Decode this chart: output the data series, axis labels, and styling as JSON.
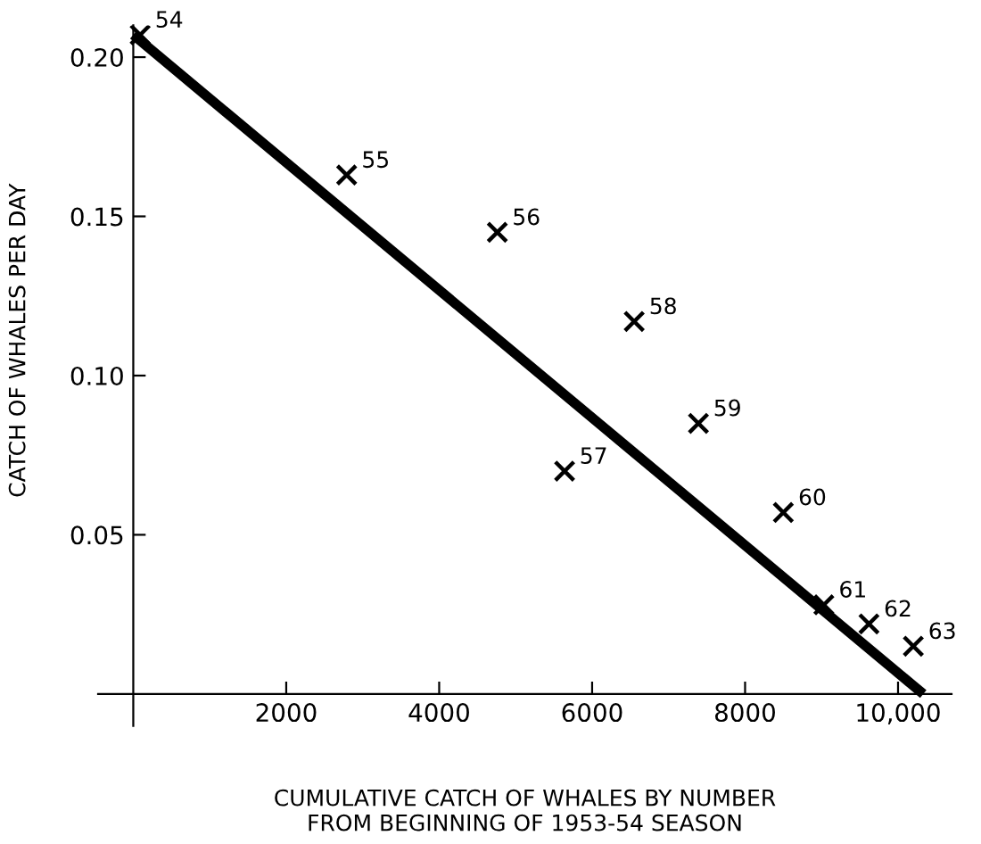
{
  "chart_data": {
    "type": "scatter",
    "xlabel": "CUMULATIVE CATCH OF WHALES BY NUMBER\nFROM BEGINNING OF 1953-54 SEASON",
    "ylabel": "CATCH OF WHALES PER DAY",
    "x": [
      90,
      2790,
      4760,
      5640,
      6550,
      7390,
      8500,
      9030,
      9620,
      10200
    ],
    "series": [
      {
        "color": "#000000",
        "marker": "cross",
        "values": [
          0.207,
          0.163,
          0.145,
          0.07,
          0.117,
          0.085,
          0.057,
          0.028,
          0.022,
          0.015
        ]
      },
      {
        "type": "line",
        "color": "#000000",
        "marker": "none",
        "x": [
          0,
          10330
        ],
        "values": [
          0.207,
          0
        ]
      }
    ],
    "grid": false,
    "xlim": [
      -460,
      10700
    ],
    "ylim": [
      -0.01,
      0.21
    ],
    "xticks": [
      2000,
      4000,
      6000,
      8000,
      {
        "value": 10000,
        "label": "10,000"
      }
    ],
    "yticks": [
      {
        "value": 0.05,
        "label": "0.05"
      },
      {
        "value": 0.1,
        "label": "0.10"
      },
      {
        "value": 0.15,
        "label": "0.15"
      },
      {
        "value": 0.2,
        "label": "0.20"
      }
    ],
    "annotations": [
      {
        "text": "54",
        "x": 90,
        "y": 0.207
      },
      {
        "text": "55",
        "x": 2790,
        "y": 0.163
      },
      {
        "text": "56",
        "x": 4760,
        "y": 0.145
      },
      {
        "text": "57",
        "x": 5640,
        "y": 0.07
      },
      {
        "text": "58",
        "x": 6550,
        "y": 0.117
      },
      {
        "text": "59",
        "x": 7390,
        "y": 0.085
      },
      {
        "text": "60",
        "x": 8500,
        "y": 0.057
      },
      {
        "text": "61",
        "x": 9030,
        "y": 0.028
      },
      {
        "text": "62",
        "x": 9620,
        "y": 0.022
      },
      {
        "text": "63",
        "x": 10200,
        "y": 0.015
      }
    ]
  }
}
